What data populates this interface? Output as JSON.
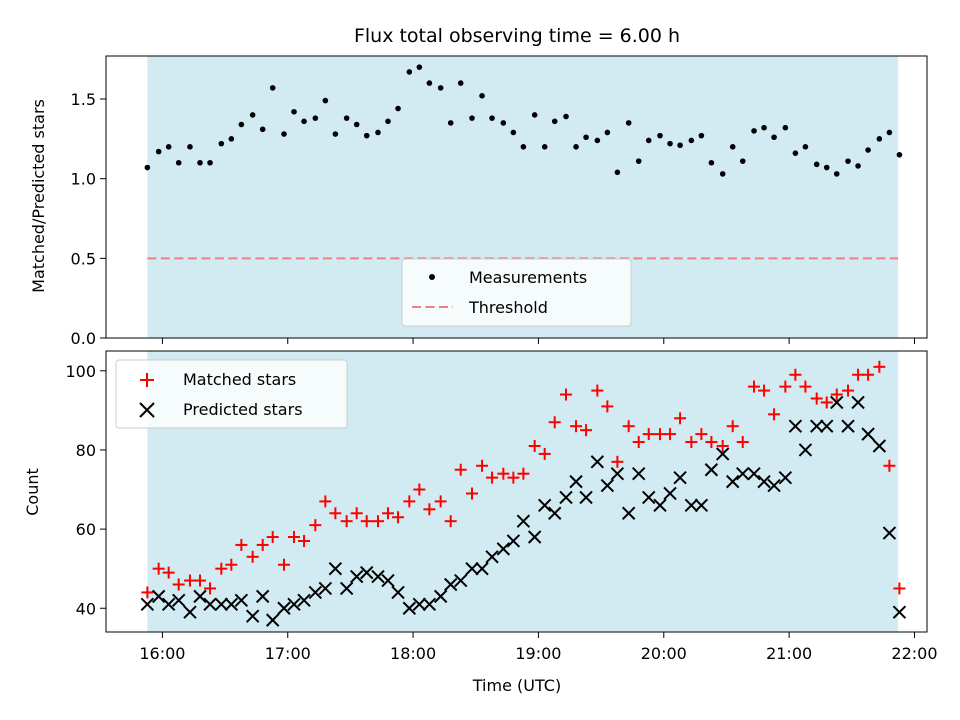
{
  "chart_data": [
    {
      "type": "scatter",
      "title": "Flux total observing time = 6.00 h",
      "xlabel": "",
      "ylabel": "Matched/Predicted stars",
      "x_unit": "hours (UTC, decimal)",
      "xlim": [
        15.55,
        22.1
      ],
      "ylim": [
        0,
        1.77
      ],
      "yticks": [
        0.0,
        0.5,
        1.0,
        1.5
      ],
      "ytick_labels": [
        "0.0",
        "0.5",
        "1.0",
        "1.5"
      ],
      "shaded_span": [
        15.88,
        21.87
      ],
      "shade_color": "#add8e6",
      "threshold": {
        "name": "Threshold",
        "value": 0.5,
        "color": "#f08080",
        "style": "dashed"
      },
      "series": [
        {
          "name": "Measurements",
          "marker": "dot",
          "color": "#000000",
          "x": [
            15.88,
            15.97,
            16.05,
            16.13,
            16.22,
            16.3,
            16.38,
            16.47,
            16.55,
            16.63,
            16.72,
            16.8,
            16.88,
            16.97,
            17.05,
            17.13,
            17.22,
            17.3,
            17.38,
            17.47,
            17.55,
            17.63,
            17.72,
            17.8,
            17.88,
            17.97,
            18.05,
            18.13,
            18.22,
            18.3,
            18.38,
            18.47,
            18.55,
            18.63,
            18.72,
            18.8,
            18.88,
            18.97,
            19.05,
            19.13,
            19.22,
            19.3,
            19.38,
            19.47,
            19.55,
            19.63,
            19.72,
            19.8,
            19.88,
            19.97,
            20.05,
            20.13,
            20.22,
            20.3,
            20.38,
            20.47,
            20.55,
            20.63,
            20.72,
            20.8,
            20.88,
            20.97,
            21.05,
            21.13,
            21.22,
            21.3,
            21.38,
            21.47,
            21.55,
            21.63,
            21.72,
            21.8,
            21.88
          ],
          "y": [
            1.07,
            1.17,
            1.2,
            1.1,
            1.2,
            1.1,
            1.1,
            1.22,
            1.25,
            1.34,
            1.4,
            1.31,
            1.57,
            1.28,
            1.42,
            1.36,
            1.38,
            1.49,
            1.28,
            1.38,
            1.34,
            1.27,
            1.29,
            1.36,
            1.44,
            1.67,
            1.7,
            1.6,
            1.57,
            1.35,
            1.6,
            1.38,
            1.52,
            1.38,
            1.35,
            1.29,
            1.2,
            1.4,
            1.2,
            1.36,
            1.39,
            1.2,
            1.26,
            1.24,
            1.29,
            1.04,
            1.35,
            1.11,
            1.24,
            1.27,
            1.22,
            1.21,
            1.24,
            1.27,
            1.1,
            1.03,
            1.2,
            1.11,
            1.3,
            1.32,
            1.26,
            1.32,
            1.16,
            1.2,
            1.09,
            1.07,
            1.03,
            1.11,
            1.08,
            1.18,
            1.25,
            1.29,
            1.15
          ]
        }
      ],
      "legend": {
        "placement": "bottom-center",
        "entries": [
          "Measurements",
          "Threshold"
        ]
      }
    },
    {
      "type": "scatter",
      "title": "",
      "xlabel": "Time (UTC)",
      "ylabel": "Count",
      "x_unit": "hours (UTC, decimal)",
      "xlim": [
        15.55,
        22.1
      ],
      "ylim": [
        34,
        105
      ],
      "xticks": [
        16,
        17,
        18,
        19,
        20,
        21,
        22
      ],
      "xtick_labels": [
        "16:00",
        "17:00",
        "18:00",
        "19:00",
        "20:00",
        "21:00",
        "22:00"
      ],
      "yticks": [
        40,
        60,
        80,
        100
      ],
      "ytick_labels": [
        "40",
        "60",
        "80",
        "100"
      ],
      "shaded_span": [
        15.88,
        21.87
      ],
      "shade_color": "#add8e6",
      "series": [
        {
          "name": "Matched stars",
          "marker": "plus",
          "color": "#ff0000",
          "x": [
            15.88,
            15.97,
            16.05,
            16.13,
            16.22,
            16.3,
            16.38,
            16.47,
            16.55,
            16.63,
            16.72,
            16.8,
            16.88,
            16.97,
            17.05,
            17.13,
            17.22,
            17.3,
            17.38,
            17.47,
            17.55,
            17.63,
            17.72,
            17.8,
            17.88,
            17.97,
            18.05,
            18.13,
            18.22,
            18.3,
            18.38,
            18.47,
            18.55,
            18.63,
            18.72,
            18.8,
            18.88,
            18.97,
            19.05,
            19.13,
            19.22,
            19.3,
            19.38,
            19.47,
            19.55,
            19.63,
            19.72,
            19.8,
            19.88,
            19.97,
            20.05,
            20.13,
            20.22,
            20.3,
            20.38,
            20.47,
            20.55,
            20.63,
            20.72,
            20.8,
            20.88,
            20.97,
            21.05,
            21.13,
            21.22,
            21.3,
            21.38,
            21.47,
            21.55,
            21.63,
            21.72,
            21.8,
            21.88
          ],
          "y": [
            44,
            50,
            49,
            46,
            47,
            47,
            45,
            50,
            51,
            56,
            53,
            56,
            58,
            51,
            58,
            57,
            61,
            67,
            64,
            62,
            64,
            62,
            62,
            64,
            63,
            67,
            70,
            65,
            67,
            62,
            75,
            69,
            76,
            73,
            74,
            73,
            74,
            81,
            79,
            87,
            94,
            86,
            85,
            95,
            91,
            77,
            86,
            82,
            84,
            84,
            84,
            88,
            82,
            84,
            82,
            81,
            86,
            82,
            96,
            95,
            89,
            96,
            99,
            96,
            93,
            92,
            94,
            95,
            99,
            99,
            101,
            76,
            45
          ]
        },
        {
          "name": "Predicted stars",
          "marker": "x",
          "color": "#000000",
          "x": [
            15.88,
            15.97,
            16.05,
            16.13,
            16.22,
            16.3,
            16.38,
            16.47,
            16.55,
            16.63,
            16.72,
            16.8,
            16.88,
            16.97,
            17.05,
            17.13,
            17.22,
            17.3,
            17.38,
            17.47,
            17.55,
            17.63,
            17.72,
            17.8,
            17.88,
            17.97,
            18.05,
            18.13,
            18.22,
            18.3,
            18.38,
            18.47,
            18.55,
            18.63,
            18.72,
            18.8,
            18.88,
            18.97,
            19.05,
            19.13,
            19.22,
            19.3,
            19.38,
            19.47,
            19.55,
            19.63,
            19.72,
            19.8,
            19.88,
            19.97,
            20.05,
            20.13,
            20.22,
            20.3,
            20.38,
            20.47,
            20.55,
            20.63,
            20.72,
            20.8,
            20.88,
            20.97,
            21.05,
            21.13,
            21.22,
            21.3,
            21.38,
            21.47,
            21.55,
            21.63,
            21.72,
            21.8,
            21.88
          ],
          "y": [
            41,
            43,
            41,
            42,
            39,
            43,
            41,
            41,
            41,
            42,
            38,
            43,
            37,
            40,
            41,
            42,
            44,
            45,
            50,
            45,
            48,
            49,
            48,
            47,
            44,
            40,
            41,
            41,
            43,
            46,
            47,
            50,
            50,
            53,
            55,
            57,
            62,
            58,
            66,
            64,
            68,
            72,
            68,
            77,
            71,
            74,
            64,
            74,
            68,
            66,
            69,
            73,
            66,
            66,
            75,
            79,
            72,
            74,
            74,
            72,
            71,
            73,
            86,
            80,
            86,
            86,
            92,
            86,
            92,
            84,
            81,
            59,
            39
          ]
        }
      ],
      "legend": {
        "placement": "top-left",
        "entries": [
          "Matched stars",
          "Predicted stars"
        ]
      }
    }
  ]
}
